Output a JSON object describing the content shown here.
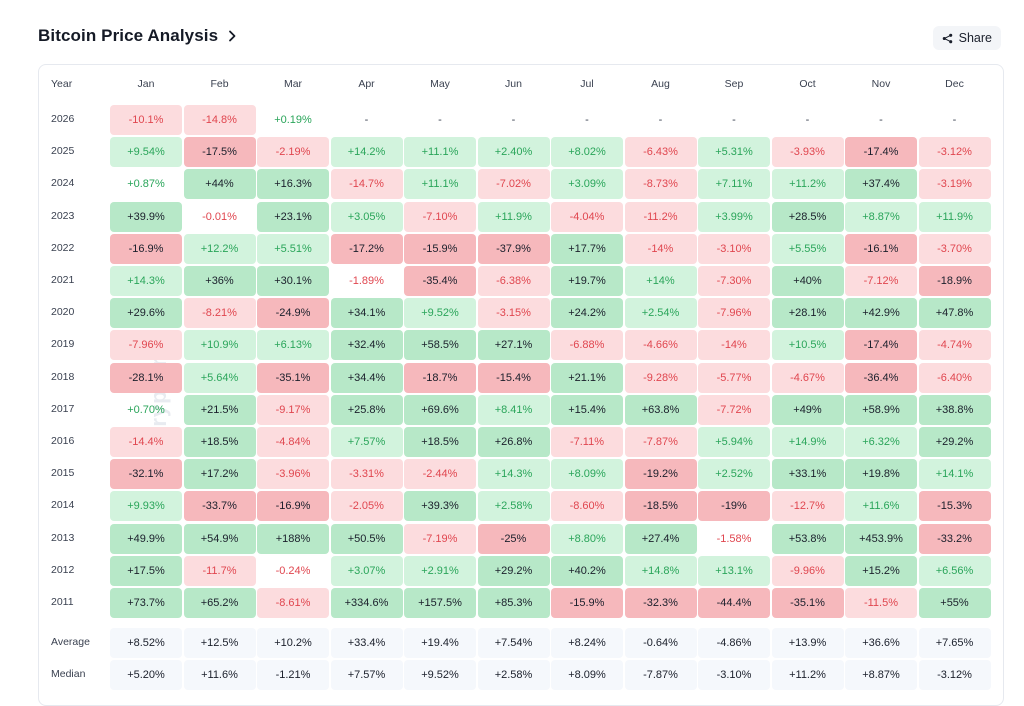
{
  "header": {
    "title": "Bitcoin Price Analysis",
    "share_label": "Share"
  },
  "watermark": "cryptorank",
  "table": {
    "year_header": "Year",
    "months": [
      "Jan",
      "Feb",
      "Mar",
      "Apr",
      "May",
      "Jun",
      "Jul",
      "Aug",
      "Sep",
      "Oct",
      "Nov",
      "Dec"
    ],
    "rows": [
      {
        "year": "2026",
        "values": [
          "-10.1%",
          "-14.8%",
          "+0.19%",
          "-",
          "-",
          "-",
          "-",
          "-",
          "-",
          "-",
          "-",
          "-"
        ]
      },
      {
        "year": "2025",
        "values": [
          "+9.54%",
          "-17.5%",
          "-2.19%",
          "+14.2%",
          "+11.1%",
          "+2.40%",
          "+8.02%",
          "-6.43%",
          "+5.31%",
          "-3.93%",
          "-17.4%",
          "-3.12%"
        ]
      },
      {
        "year": "2024",
        "values": [
          "+0.87%",
          "+44%",
          "+16.3%",
          "-14.7%",
          "+11.1%",
          "-7.02%",
          "+3.09%",
          "-8.73%",
          "+7.11%",
          "+11.2%",
          "+37.4%",
          "-3.19%"
        ]
      },
      {
        "year": "2023",
        "values": [
          "+39.9%",
          "-0.01%",
          "+23.1%",
          "+3.05%",
          "-7.10%",
          "+11.9%",
          "-4.04%",
          "-11.2%",
          "+3.99%",
          "+28.5%",
          "+8.87%",
          "+11.9%"
        ]
      },
      {
        "year": "2022",
        "values": [
          "-16.9%",
          "+12.2%",
          "+5.51%",
          "-17.2%",
          "-15.9%",
          "-37.9%",
          "+17.7%",
          "-14%",
          "-3.10%",
          "+5.55%",
          "-16.1%",
          "-3.70%"
        ]
      },
      {
        "year": "2021",
        "values": [
          "+14.3%",
          "+36%",
          "+30.1%",
          "-1.89%",
          "-35.4%",
          "-6.38%",
          "+19.7%",
          "+14%",
          "-7.30%",
          "+40%",
          "-7.12%",
          "-18.9%"
        ]
      },
      {
        "year": "2020",
        "values": [
          "+29.6%",
          "-8.21%",
          "-24.9%",
          "+34.1%",
          "+9.52%",
          "-3.15%",
          "+24.2%",
          "+2.54%",
          "-7.96%",
          "+28.1%",
          "+42.9%",
          "+47.8%"
        ]
      },
      {
        "year": "2019",
        "values": [
          "-7.96%",
          "+10.9%",
          "+6.13%",
          "+32.4%",
          "+58.5%",
          "+27.1%",
          "-6.88%",
          "-4.66%",
          "-14%",
          "+10.5%",
          "-17.4%",
          "-4.74%"
        ]
      },
      {
        "year": "2018",
        "values": [
          "-28.1%",
          "+5.64%",
          "-35.1%",
          "+34.4%",
          "-18.7%",
          "-15.4%",
          "+21.1%",
          "-9.28%",
          "-5.77%",
          "-4.67%",
          "-36.4%",
          "-6.40%"
        ]
      },
      {
        "year": "2017",
        "values": [
          "+0.70%",
          "+21.5%",
          "-9.17%",
          "+25.8%",
          "+69.6%",
          "+8.41%",
          "+15.4%",
          "+63.8%",
          "-7.72%",
          "+49%",
          "+58.9%",
          "+38.8%"
        ]
      },
      {
        "year": "2016",
        "values": [
          "-14.4%",
          "+18.5%",
          "-4.84%",
          "+7.57%",
          "+18.5%",
          "+26.8%",
          "-7.11%",
          "-7.87%",
          "+5.94%",
          "+14.9%",
          "+6.32%",
          "+29.2%"
        ]
      },
      {
        "year": "2015",
        "values": [
          "-32.1%",
          "+17.2%",
          "-3.96%",
          "-3.31%",
          "-2.44%",
          "+14.3%",
          "+8.09%",
          "-19.2%",
          "+2.52%",
          "+33.1%",
          "+19.8%",
          "+14.1%"
        ]
      },
      {
        "year": "2014",
        "values": [
          "+9.93%",
          "-33.7%",
          "-16.9%",
          "-2.05%",
          "+39.3%",
          "+2.58%",
          "-8.60%",
          "-18.5%",
          "-19%",
          "-12.7%",
          "+11.6%",
          "-15.3%"
        ]
      },
      {
        "year": "2013",
        "values": [
          "+49.9%",
          "+54.9%",
          "+188%",
          "+50.5%",
          "-7.19%",
          "-25%",
          "+8.80%",
          "+27.4%",
          "-1.58%",
          "+53.8%",
          "+453.9%",
          "-33.2%"
        ]
      },
      {
        "year": "2012",
        "values": [
          "+17.5%",
          "-11.7%",
          "-0.24%",
          "+3.07%",
          "+2.91%",
          "+29.2%",
          "+40.2%",
          "+14.8%",
          "+13.1%",
          "-9.96%",
          "+15.2%",
          "+6.56%"
        ]
      },
      {
        "year": "2011",
        "values": [
          "+73.7%",
          "+65.2%",
          "-8.61%",
          "+334.6%",
          "+157.5%",
          "+85.3%",
          "-15.9%",
          "-32.3%",
          "-44.4%",
          "-35.1%",
          "-11.5%",
          "+55%"
        ]
      }
    ],
    "stats": [
      {
        "label": "Average",
        "values": [
          "+8.52%",
          "+12.5%",
          "+10.2%",
          "+33.4%",
          "+19.4%",
          "+7.54%",
          "+8.24%",
          "-0.64%",
          "-4.86%",
          "+13.9%",
          "+36.6%",
          "+7.65%"
        ]
      },
      {
        "label": "Median",
        "values": [
          "+5.20%",
          "+11.6%",
          "-1.21%",
          "+7.57%",
          "+9.52%",
          "+2.58%",
          "+8.09%",
          "-7.87%",
          "-3.10%",
          "+11.2%",
          "+8.87%",
          "-3.12%"
        ]
      }
    ]
  }
}
